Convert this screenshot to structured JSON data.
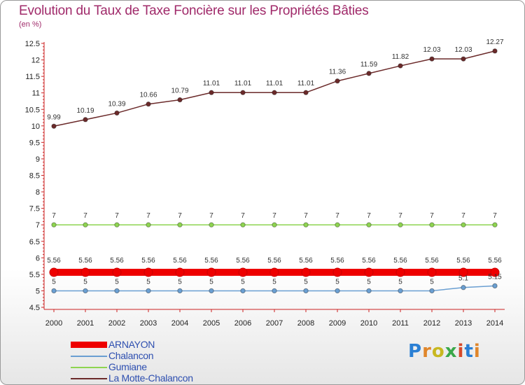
{
  "chart_data": {
    "type": "line",
    "title": "Evolution du Taux de Taxe Foncière sur les Propriétés Bâties",
    "ylabel": "(en %)",
    "xlabel": "",
    "x": [
      "2000",
      "2001",
      "2002",
      "2003",
      "2004",
      "2005",
      "2006",
      "2007",
      "2008",
      "2009",
      "2010",
      "2011",
      "2012",
      "2013",
      "2014"
    ],
    "ylim": [
      4.5,
      12.5
    ],
    "yticks": [
      "4.5",
      "5",
      "5.5",
      "6",
      "6.5",
      "7",
      "7.5",
      "8",
      "8.5",
      "9",
      "9.5",
      "10",
      "10.5",
      "11",
      "11.5",
      "12",
      "12.5"
    ],
    "grid": false,
    "legend_position": "bottom-left",
    "series": [
      {
        "name": "ARNAYON",
        "color": "#ee0000",
        "thick": true,
        "values": [
          5.56,
          5.56,
          5.56,
          5.56,
          5.56,
          5.56,
          5.56,
          5.56,
          5.56,
          5.56,
          5.56,
          5.56,
          5.56,
          5.56,
          5.56
        ],
        "labels": [
          "5.56",
          "5.56",
          "5.56",
          "5.56",
          "5.56",
          "5.56",
          "5.56",
          "5.56",
          "5.56",
          "5.56",
          "5.56",
          "5.56",
          "5.56",
          "5.56",
          "5.56"
        ]
      },
      {
        "name": "Chalancon",
        "color": "#6a9fd2",
        "thick": false,
        "values": [
          5,
          5,
          5,
          5,
          5,
          5,
          5,
          5,
          5,
          5,
          5,
          5,
          5,
          5.1,
          5.15
        ],
        "labels": [
          "5",
          "5",
          "5",
          "5",
          "5",
          "5",
          "5",
          "5",
          "5",
          "5",
          "5",
          "5",
          "5",
          "5.1",
          "5.15"
        ]
      },
      {
        "name": "Gumiane",
        "color": "#8ed450",
        "thick": false,
        "values": [
          7,
          7,
          7,
          7,
          7,
          7,
          7,
          7,
          7,
          7,
          7,
          7,
          7,
          7,
          7
        ],
        "labels": [
          "7",
          "7",
          "7",
          "7",
          "7",
          "7",
          "7",
          "7",
          "7",
          "7",
          "7",
          "7",
          "7",
          "7",
          "7"
        ]
      },
      {
        "name": "La Motte-Chalancon",
        "color": "#6b2a2a",
        "thick": false,
        "values": [
          9.99,
          10.19,
          10.39,
          10.66,
          10.79,
          11.01,
          11.01,
          11.01,
          11.01,
          11.36,
          11.59,
          11.82,
          12.03,
          12.03,
          12.27
        ],
        "labels": [
          "9.99",
          "10.19",
          "10.39",
          "10.66",
          "10.79",
          "11.01",
          "11.01",
          "11.01",
          "11.01",
          "11.36",
          "11.59",
          "11.82",
          "12.03",
          "12.03",
          "12.27"
        ]
      }
    ]
  },
  "logo": {
    "text": "Proxiti"
  },
  "colors": {
    "title": "#a02a6a",
    "legend_text": "#2e4fb0",
    "axis": "#cc2222"
  }
}
